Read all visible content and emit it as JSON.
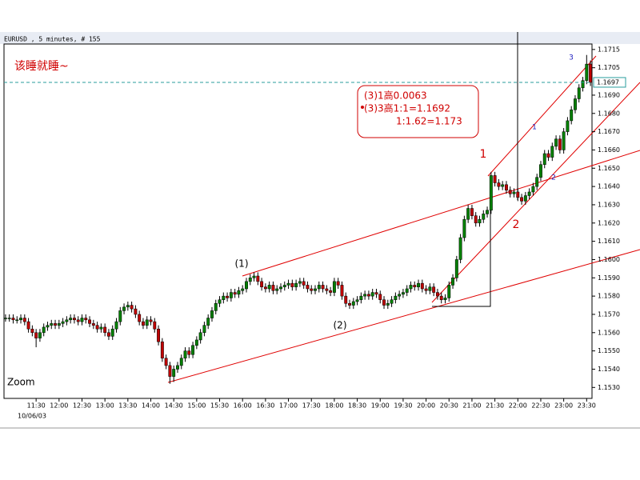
{
  "chart_data": {
    "type": "candlestick",
    "title": "EURUSD , 5 minutes, # 155",
    "date_label": "10/06/03",
    "corner_note": "该睡就睡~",
    "zoom_label": "Zoom",
    "box_notes": [
      "(3)1高0.0063",
      "(3)3高1:1=1.1692",
      "1:1.62=1.173"
    ],
    "wave_labels": [
      "(1)",
      "(2)",
      "1",
      "2",
      "3",
      "1",
      "2"
    ],
    "up_color": "#008000",
    "down_color": "#c00000",
    "current_price": {
      "value": 1.1697,
      "label": "1.1697"
    },
    "xlim": [
      -0.4,
      153.4
    ],
    "ylim": [
      1.1524,
      1.1718
    ],
    "xticks": [
      {
        "value": 8,
        "label": "11:30"
      },
      {
        "value": 14,
        "label": "12:00"
      },
      {
        "value": 20,
        "label": "12:30"
      },
      {
        "value": 26,
        "label": "13:00"
      },
      {
        "value": 32,
        "label": "13:30"
      },
      {
        "value": 38,
        "label": "14:00"
      },
      {
        "value": 44,
        "label": "14:30"
      },
      {
        "value": 50,
        "label": "15:00"
      },
      {
        "value": 56,
        "label": "15:30"
      },
      {
        "value": 62,
        "label": "16:00"
      },
      {
        "value": 68,
        "label": "16:30"
      },
      {
        "value": 74,
        "label": "17:00"
      },
      {
        "value": 80,
        "label": "17:30"
      },
      {
        "value": 86,
        "label": "18:00"
      },
      {
        "value": 92,
        "label": "18:30"
      },
      {
        "value": 98,
        "label": "19:00"
      },
      {
        "value": 104,
        "label": "19:30"
      },
      {
        "value": 110,
        "label": "20:00"
      },
      {
        "value": 116,
        "label": "20:30"
      },
      {
        "value": 122,
        "label": "21:00"
      },
      {
        "value": 128,
        "label": "21:30"
      },
      {
        "value": 134,
        "label": "22:00"
      },
      {
        "value": 140,
        "label": "22:30"
      },
      {
        "value": 146,
        "label": "23:00"
      },
      {
        "value": 152,
        "label": "23:30"
      }
    ],
    "yticks": [
      {
        "value": 1.153,
        "label": "1.1530"
      },
      {
        "value": 1.154,
        "label": "1.1540"
      },
      {
        "value": 1.155,
        "label": "1.1550"
      },
      {
        "value": 1.156,
        "label": "1.1560"
      },
      {
        "value": 1.157,
        "label": "1.1570"
      },
      {
        "value": 1.158,
        "label": "1.1580"
      },
      {
        "value": 1.159,
        "label": "1.1590"
      },
      {
        "value": 1.16,
        "label": "1.1600"
      },
      {
        "value": 1.161,
        "label": "1.1610"
      },
      {
        "value": 1.162,
        "label": "1.1620"
      },
      {
        "value": 1.163,
        "label": "1.1630"
      },
      {
        "value": 1.164,
        "label": "1.1640"
      },
      {
        "value": 1.165,
        "label": "1.1650"
      },
      {
        "value": 1.166,
        "label": "1.1660"
      },
      {
        "value": 1.167,
        "label": "1.1670"
      },
      {
        "value": 1.168,
        "label": "1.1680"
      },
      {
        "value": 1.169,
        "label": "1.1690"
      },
      {
        "value": 1.1705,
        "label": "1.1705"
      },
      {
        "value": 1.1715,
        "label": "1.1715"
      }
    ],
    "ohlc": [
      [
        1.1568,
        1.157,
        1.1566,
        1.1568
      ],
      [
        1.1568,
        1.157,
        1.1566,
        1.1568
      ],
      [
        1.1568,
        1.157,
        1.1565,
        1.1567
      ],
      [
        1.1567,
        1.1569,
        1.1565,
        1.1567
      ],
      [
        1.1567,
        1.157,
        1.1565,
        1.1568
      ],
      [
        1.1568,
        1.157,
        1.1564,
        1.1566
      ],
      [
        1.1566,
        1.1568,
        1.156,
        1.1562
      ],
      [
        1.1562,
        1.1564,
        1.1558,
        1.156
      ],
      [
        1.156,
        1.1562,
        1.1552,
        1.1557
      ],
      [
        1.1557,
        1.1562,
        1.1555,
        1.156
      ],
      [
        1.156,
        1.1565,
        1.1558,
        1.1563
      ],
      [
        1.1563,
        1.1566,
        1.1561,
        1.1564
      ],
      [
        1.1564,
        1.1567,
        1.1562,
        1.1565
      ],
      [
        1.1565,
        1.1567,
        1.1562,
        1.1564
      ],
      [
        1.1564,
        1.1567,
        1.1562,
        1.1565
      ],
      [
        1.1565,
        1.1568,
        1.1563,
        1.1566
      ],
      [
        1.1566,
        1.1569,
        1.1564,
        1.1567
      ],
      [
        1.1567,
        1.157,
        1.1565,
        1.1568
      ],
      [
        1.1568,
        1.157,
        1.1565,
        1.1567
      ],
      [
        1.1567,
        1.1569,
        1.1564,
        1.1566
      ],
      [
        1.1566,
        1.157,
        1.1564,
        1.1568
      ],
      [
        1.1568,
        1.157,
        1.1565,
        1.1567
      ],
      [
        1.1567,
        1.1569,
        1.1563,
        1.1565
      ],
      [
        1.1565,
        1.1567,
        1.1562,
        1.1564
      ],
      [
        1.1564,
        1.1566,
        1.156,
        1.1562
      ],
      [
        1.1562,
        1.1565,
        1.156,
        1.1563
      ],
      [
        1.1563,
        1.1565,
        1.1558,
        1.156
      ],
      [
        1.156,
        1.1562,
        1.1556,
        1.1558
      ],
      [
        1.1558,
        1.1564,
        1.1556,
        1.1562
      ],
      [
        1.1562,
        1.1568,
        1.156,
        1.1566
      ],
      [
        1.1566,
        1.1574,
        1.1564,
        1.1572
      ],
      [
        1.1572,
        1.1576,
        1.157,
        1.1574
      ],
      [
        1.1574,
        1.1577,
        1.1572,
        1.1575
      ],
      [
        1.1575,
        1.1577,
        1.1571,
        1.1573
      ],
      [
        1.1573,
        1.1575,
        1.1568,
        1.157
      ],
      [
        1.157,
        1.1572,
        1.1564,
        1.1566
      ],
      [
        1.1566,
        1.1568,
        1.1562,
        1.1564
      ],
      [
        1.1564,
        1.1569,
        1.1562,
        1.1567
      ],
      [
        1.1567,
        1.1569,
        1.1564,
        1.1566
      ],
      [
        1.1566,
        1.1568,
        1.156,
        1.1562
      ],
      [
        1.1562,
        1.1564,
        1.1553,
        1.1555
      ],
      [
        1.1555,
        1.1557,
        1.1544,
        1.1546
      ],
      [
        1.1546,
        1.1548,
        1.154,
        1.1542
      ],
      [
        1.1542,
        1.1544,
        1.1532,
        1.1536
      ],
      [
        1.1536,
        1.1542,
        1.1533,
        1.154
      ],
      [
        1.154,
        1.1544,
        1.1538,
        1.1542
      ],
      [
        1.1542,
        1.1548,
        1.154,
        1.1546
      ],
      [
        1.1546,
        1.1552,
        1.1544,
        1.155
      ],
      [
        1.155,
        1.1552,
        1.1546,
        1.1548
      ],
      [
        1.1548,
        1.1555,
        1.1546,
        1.1553
      ],
      [
        1.1553,
        1.1558,
        1.1551,
        1.1556
      ],
      [
        1.1556,
        1.1562,
        1.1554,
        1.156
      ],
      [
        1.156,
        1.1566,
        1.1558,
        1.1564
      ],
      [
        1.1564,
        1.157,
        1.1562,
        1.1568
      ],
      [
        1.1568,
        1.1574,
        1.1566,
        1.1572
      ],
      [
        1.1572,
        1.1578,
        1.157,
        1.1576
      ],
      [
        1.1576,
        1.158,
        1.1574,
        1.1578
      ],
      [
        1.1578,
        1.1582,
        1.1576,
        1.158
      ],
      [
        1.158,
        1.1582,
        1.1577,
        1.1579
      ],
      [
        1.1579,
        1.1584,
        1.1577,
        1.1582
      ],
      [
        1.1582,
        1.1584,
        1.1579,
        1.1581
      ],
      [
        1.1581,
        1.1585,
        1.1579,
        1.1583
      ],
      [
        1.1583,
        1.1586,
        1.1581,
        1.1584
      ],
      [
        1.1584,
        1.159,
        1.1582,
        1.1588
      ],
      [
        1.1588,
        1.1592,
        1.1586,
        1.159
      ],
      [
        1.159,
        1.1593,
        1.1588,
        1.1591
      ],
      [
        1.1591,
        1.1593,
        1.1586,
        1.1588
      ],
      [
        1.1588,
        1.159,
        1.1583,
        1.1585
      ],
      [
        1.1585,
        1.1587,
        1.1582,
        1.1584
      ],
      [
        1.1584,
        1.1588,
        1.1582,
        1.1586
      ],
      [
        1.1586,
        1.1588,
        1.1581,
        1.1583
      ],
      [
        1.1583,
        1.1586,
        1.1581,
        1.1584
      ],
      [
        1.1584,
        1.1587,
        1.1582,
        1.1585
      ],
      [
        1.1585,
        1.1588,
        1.1583,
        1.1586
      ],
      [
        1.1586,
        1.1589,
        1.1584,
        1.1587
      ],
      [
        1.1587,
        1.1589,
        1.1583,
        1.1585
      ],
      [
        1.1585,
        1.1589,
        1.1583,
        1.1587
      ],
      [
        1.1587,
        1.159,
        1.1585,
        1.1588
      ],
      [
        1.1588,
        1.159,
        1.1584,
        1.1586
      ],
      [
        1.1586,
        1.1588,
        1.1582,
        1.1584
      ],
      [
        1.1584,
        1.1586,
        1.1581,
        1.1583
      ],
      [
        1.1583,
        1.1586,
        1.1581,
        1.1584
      ],
      [
        1.1584,
        1.1588,
        1.1582,
        1.1586
      ],
      [
        1.1586,
        1.1588,
        1.1582,
        1.1584
      ],
      [
        1.1584,
        1.1586,
        1.1581,
        1.1583
      ],
      [
        1.1583,
        1.1585,
        1.158,
        1.1582
      ],
      [
        1.1582,
        1.159,
        1.158,
        1.1588
      ],
      [
        1.1588,
        1.159,
        1.1584,
        1.1586
      ],
      [
        1.1586,
        1.1588,
        1.1578,
        1.158
      ],
      [
        1.158,
        1.1582,
        1.1574,
        1.1576
      ],
      [
        1.1576,
        1.1578,
        1.1573,
        1.1575
      ],
      [
        1.1575,
        1.1579,
        1.1573,
        1.1577
      ],
      [
        1.1577,
        1.158,
        1.1575,
        1.1578
      ],
      [
        1.1578,
        1.1582,
        1.1576,
        1.158
      ],
      [
        1.158,
        1.1583,
        1.1578,
        1.1581
      ],
      [
        1.1581,
        1.1583,
        1.1578,
        1.158
      ],
      [
        1.158,
        1.1584,
        1.1578,
        1.1582
      ],
      [
        1.1582,
        1.1584,
        1.1579,
        1.1581
      ],
      [
        1.1581,
        1.1583,
        1.1576,
        1.1578
      ],
      [
        1.1578,
        1.158,
        1.1573,
        1.1575
      ],
      [
        1.1575,
        1.1578,
        1.1573,
        1.1576
      ],
      [
        1.1576,
        1.158,
        1.1574,
        1.1578
      ],
      [
        1.1578,
        1.1582,
        1.1576,
        1.158
      ],
      [
        1.158,
        1.1583,
        1.1578,
        1.1581
      ],
      [
        1.1581,
        1.1584,
        1.1579,
        1.1582
      ],
      [
        1.1582,
        1.1586,
        1.158,
        1.1584
      ],
      [
        1.1584,
        1.1588,
        1.1582,
        1.1586
      ],
      [
        1.1586,
        1.1588,
        1.1583,
        1.1585
      ],
      [
        1.1585,
        1.1589,
        1.1583,
        1.1587
      ],
      [
        1.1587,
        1.1589,
        1.1582,
        1.1584
      ],
      [
        1.1584,
        1.1586,
        1.1581,
        1.1583
      ],
      [
        1.1583,
        1.1587,
        1.1581,
        1.1585
      ],
      [
        1.1585,
        1.1587,
        1.158,
        1.1582
      ],
      [
        1.1582,
        1.1584,
        1.1578,
        1.158
      ],
      [
        1.158,
        1.1582,
        1.1576,
        1.1578
      ],
      [
        1.1578,
        1.1581,
        1.1576,
        1.1579
      ],
      [
        1.1579,
        1.1588,
        1.1577,
        1.1586
      ],
      [
        1.1586,
        1.1592,
        1.1584,
        1.159
      ],
      [
        1.159,
        1.1602,
        1.1588,
        1.16
      ],
      [
        1.16,
        1.1614,
        1.1598,
        1.1612
      ],
      [
        1.1612,
        1.1624,
        1.161,
        1.1622
      ],
      [
        1.1622,
        1.163,
        1.162,
        1.1628
      ],
      [
        1.1628,
        1.163,
        1.1622,
        1.1624
      ],
      [
        1.1624,
        1.1626,
        1.1618,
        1.162
      ],
      [
        1.162,
        1.1624,
        1.1618,
        1.1622
      ],
      [
        1.1622,
        1.1627,
        1.162,
        1.1625
      ],
      [
        1.1625,
        1.1629,
        1.1623,
        1.1627
      ],
      [
        1.1627,
        1.1648,
        1.1625,
        1.1646
      ],
      [
        1.1646,
        1.1648,
        1.164,
        1.1642
      ],
      [
        1.1642,
        1.1644,
        1.1638,
        1.164
      ],
      [
        1.164,
        1.1643,
        1.1638,
        1.1641
      ],
      [
        1.1641,
        1.1643,
        1.1636,
        1.1638
      ],
      [
        1.1638,
        1.164,
        1.1634,
        1.1636
      ],
      [
        1.1636,
        1.1639,
        1.1634,
        1.1637
      ],
      [
        1.1637,
        1.1639,
        1.1632,
        1.1634
      ],
      [
        1.1634,
        1.1636,
        1.163,
        1.1632
      ],
      [
        1.1632,
        1.1637,
        1.163,
        1.1635
      ],
      [
        1.1635,
        1.1639,
        1.1633,
        1.1637
      ],
      [
        1.1637,
        1.1642,
        1.1635,
        1.164
      ],
      [
        1.164,
        1.1647,
        1.1638,
        1.1645
      ],
      [
        1.1645,
        1.1654,
        1.1643,
        1.1652
      ],
      [
        1.1652,
        1.166,
        1.165,
        1.1658
      ],
      [
        1.1658,
        1.166,
        1.1654,
        1.1656
      ],
      [
        1.1656,
        1.1664,
        1.1654,
        1.1662
      ],
      [
        1.1662,
        1.1668,
        1.166,
        1.1666
      ],
      [
        1.1666,
        1.1668,
        1.1658,
        1.166
      ],
      [
        1.166,
        1.1672,
        1.1658,
        1.167
      ],
      [
        1.167,
        1.1678,
        1.1668,
        1.1676
      ],
      [
        1.1676,
        1.1684,
        1.1674,
        1.1682
      ],
      [
        1.1682,
        1.169,
        1.168,
        1.1688
      ],
      [
        1.1688,
        1.1696,
        1.1686,
        1.1694
      ],
      [
        1.1694,
        1.17,
        1.1692,
        1.1698
      ],
      [
        1.1698,
        1.1712,
        1.1696,
        1.1707
      ],
      [
        1.1707,
        1.1709,
        1.1695,
        1.1697
      ]
    ]
  }
}
